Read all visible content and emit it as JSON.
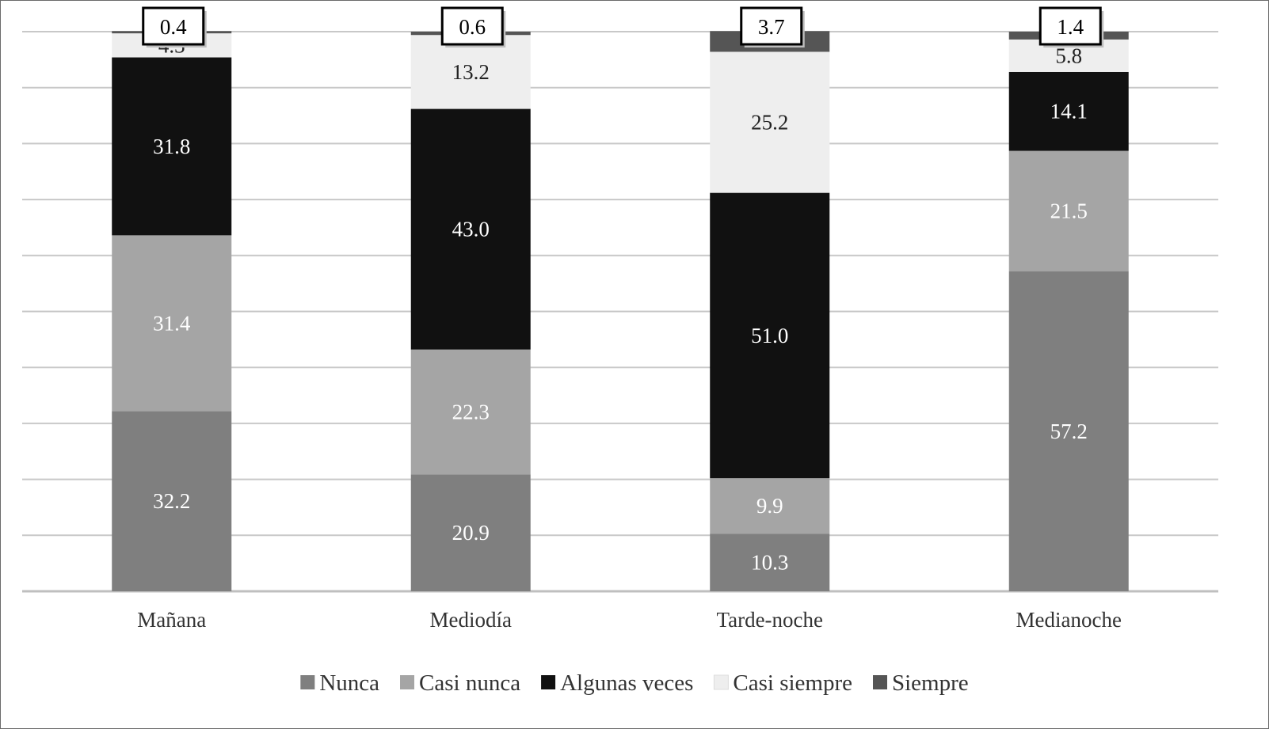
{
  "chart_data": {
    "type": "bar",
    "stacked": true,
    "categories": [
      "Mañana",
      "Mediodía",
      "Tarde-noche",
      "Medianoche"
    ],
    "series": [
      {
        "name": "Nunca",
        "color": "#7f7f7f",
        "label_color": "#ffffff",
        "values": [
          32.2,
          20.9,
          10.3,
          57.2
        ]
      },
      {
        "name": "Casi nunca",
        "color": "#a5a5a5",
        "label_color": "#ffffff",
        "values": [
          31.4,
          22.3,
          9.9,
          21.5
        ]
      },
      {
        "name": "Algunas veces",
        "color": "#111111",
        "label_color": "#ffffff",
        "values": [
          31.8,
          43.0,
          51.0,
          14.1
        ]
      },
      {
        "name": "Casi siempre",
        "color": "#eeeeee",
        "label_color": "#222222",
        "values": [
          4.3,
          13.2,
          25.2,
          5.8
        ]
      },
      {
        "name": "Siempre",
        "color": "#555555",
        "label_color": "#000000",
        "values": [
          0.4,
          0.6,
          3.7,
          1.4
        ]
      }
    ],
    "ylim": [
      0,
      100
    ],
    "grid": true,
    "legend": "bottom",
    "callout_series": "Siempre",
    "label_decimals": 1
  }
}
